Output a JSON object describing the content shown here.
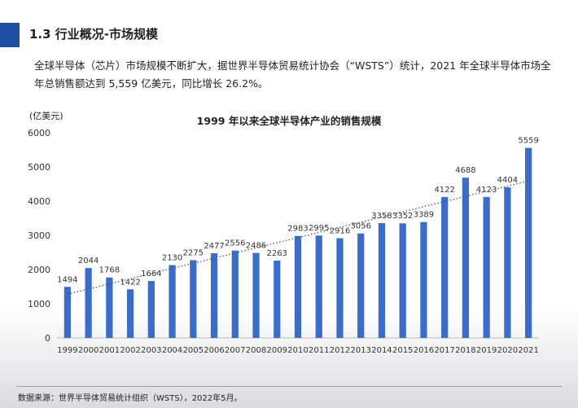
{
  "header": {
    "section_title": "1.3 行业概况-市场规模",
    "accent_color": "#1e4fa3"
  },
  "summary": {
    "text": "全球半导体（芯片）市场规模不断扩大，据世界半导体贸易统计协会（“WSTS”）统计，2021 年全球半导体市场全年总销售额达到 5,559 亿美元，同比增长 26.2%。"
  },
  "footer": {
    "source": "数据来源：世界半导体贸易统计组织（WSTS），2022年5月。"
  },
  "chart_data": {
    "type": "bar",
    "title": "1999 年以来全球半导体产业的销售规模",
    "unit_label": "(亿美元)",
    "xlabel": "",
    "ylabel": "(亿美元)",
    "categories": [
      "1999",
      "2000",
      "2001",
      "2002",
      "2003",
      "2004",
      "2005",
      "2006",
      "2007",
      "2008",
      "2009",
      "2010",
      "2011",
      "2012",
      "2013",
      "2014",
      "2015",
      "2016",
      "2017",
      "2018",
      "2019",
      "2020",
      "2021"
    ],
    "values": [
      1494,
      2044,
      1768,
      1422,
      1664,
      2130,
      2275,
      2477,
      2556,
      2486,
      2263,
      2983,
      2995,
      2916,
      3056,
      3358,
      3352,
      3389,
      4122,
      4688,
      4123,
      4404,
      5559
    ],
    "ylim": [
      0,
      6000
    ],
    "yticks": [
      0,
      1000,
      2000,
      3000,
      4000,
      5000,
      6000
    ],
    "trendline": "linear dotted",
    "bar_color": "#3b6cc9",
    "trend_color": "#555555"
  }
}
